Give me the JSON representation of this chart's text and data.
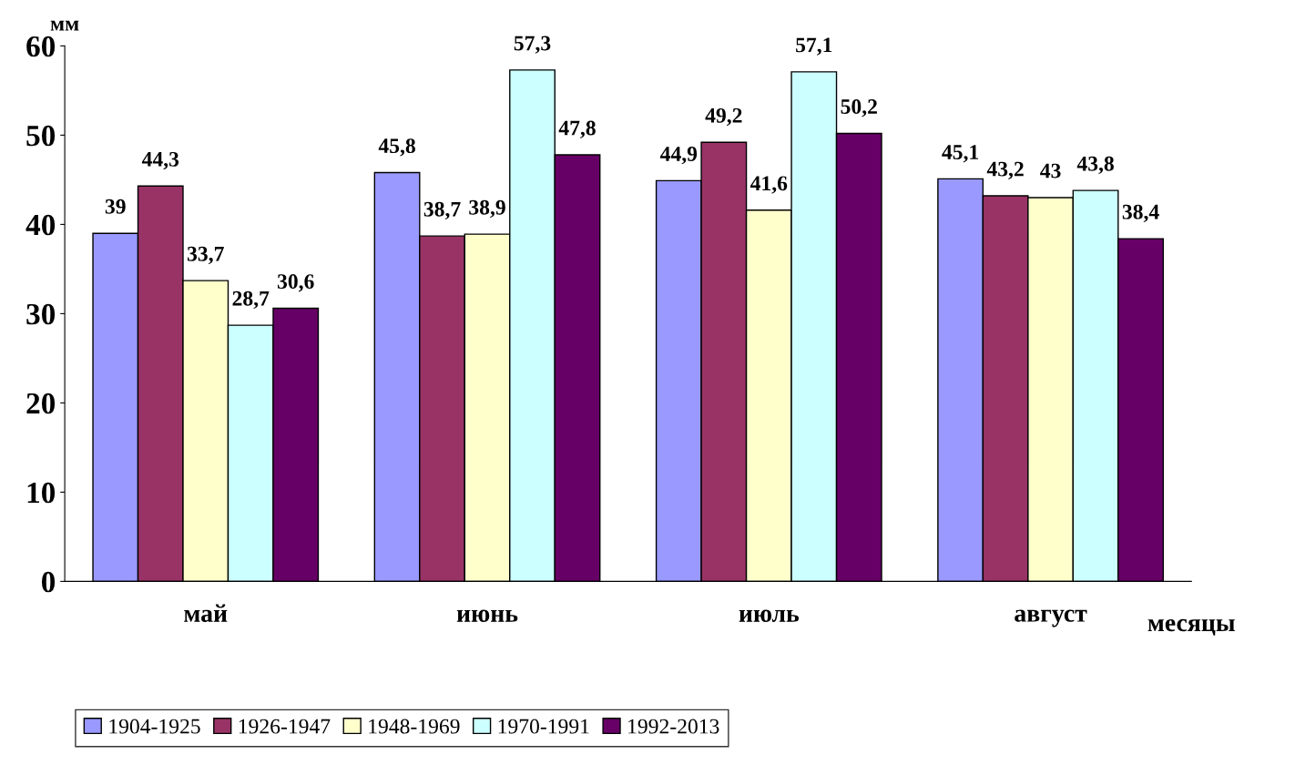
{
  "chart_data": {
    "type": "bar",
    "ylabel": "мм",
    "xlabel": "месяцы",
    "categories": [
      "май",
      "июнь",
      "июль",
      "август"
    ],
    "series": [
      {
        "name": "1904-1925",
        "color": "#9999ff",
        "values": [
          39,
          45.8,
          44.9,
          45.1
        ],
        "value_labels": [
          "39",
          "45,8",
          "44,9",
          "45,1"
        ]
      },
      {
        "name": "1926-1947",
        "color": "#993366",
        "values": [
          44.3,
          38.7,
          49.2,
          43.2
        ],
        "value_labels": [
          "44,3",
          "38,7",
          "49,2",
          "43,2"
        ]
      },
      {
        "name": "1948-1969",
        "color": "#ffffcc",
        "values": [
          33.7,
          38.9,
          41.6,
          43
        ],
        "value_labels": [
          "33,7",
          "38,9",
          "41,6",
          "43"
        ]
      },
      {
        "name": "1970-1991",
        "color": "#ccffff",
        "values": [
          28.7,
          57.3,
          57.1,
          43.8
        ],
        "value_labels": [
          "28,7",
          "57,3",
          "57,1",
          "43,8"
        ]
      },
      {
        "name": "1992-2013",
        "color": "#660066",
        "values": [
          30.6,
          47.8,
          50.2,
          38.4
        ],
        "value_labels": [
          "30,6",
          "47,8",
          "50,2",
          "38,4"
        ]
      }
    ],
    "ylim": [
      0,
      60
    ],
    "yticks": [
      0,
      10,
      20,
      30,
      40,
      50,
      60
    ],
    "grid": false,
    "legend": "bottom"
  }
}
